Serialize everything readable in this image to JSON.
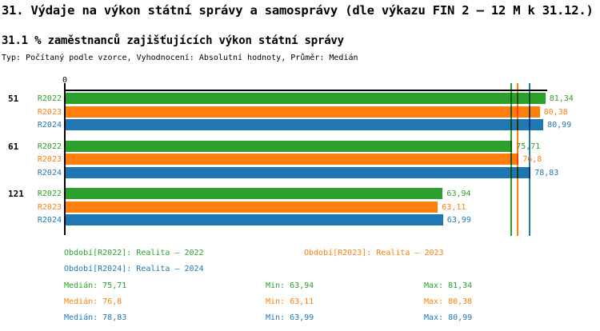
{
  "header": {
    "title": "31. Výdaje na výkon státní správy a samosprávy (dle výkazu FIN 2 – 12 M k 31.12.)",
    "subtitle": "31.1 % zaměstnanců zajišťujících výkon státní správy",
    "type_line": "Typ: Počítaný podle vzorce, Vyhodnocení: Absolutní hodnoty, Průměr: Medián"
  },
  "colors": {
    "green": "#2ca02c",
    "orange": "#ff7f0e",
    "blue": "#1f77b4",
    "axis": "#000000"
  },
  "chart_data": {
    "type": "bar",
    "orientation": "horizontal",
    "title": "31.1 % zaměstnanců zajišťujících výkon státní správy",
    "categories": [
      "51",
      "61",
      "121"
    ],
    "series": [
      {
        "name": "R2022",
        "color": "green",
        "values": [
          81.34,
          75.71,
          63.94
        ],
        "value_labels": [
          "81,34",
          "75,71",
          "63,94"
        ],
        "median": 75.71,
        "min": 63.94,
        "max": 81.34
      },
      {
        "name": "R2023",
        "color": "orange",
        "values": [
          80.38,
          76.8,
          63.11
        ],
        "value_labels": [
          "80,38",
          "76,8",
          "63,11"
        ],
        "median": 76.8,
        "min": 63.11,
        "max": 80.38
      },
      {
        "name": "R2024",
        "color": "blue",
        "values": [
          80.99,
          78.83,
          63.99
        ],
        "value_labels": [
          "80,99",
          "78,83",
          "63,99"
        ],
        "median": 78.83,
        "min": 63.99,
        "max": 80.99
      }
    ],
    "x_axis": {
      "zero_label": "0",
      "min": 0,
      "max_value": 81.34
    },
    "median_lines": [
      {
        "value": 75.71,
        "color": "green"
      },
      {
        "value": 76.8,
        "color": "orange"
      },
      {
        "value": 78.83,
        "color": "blue"
      }
    ],
    "grid": false,
    "legend_position": "bottom"
  },
  "legend": {
    "periods": [
      {
        "label": "Období[R2022]: Realita – 2022",
        "color": "green"
      },
      {
        "label": "Období[R2023]: Realita – 2023",
        "color": "orange"
      },
      {
        "label": "Období[R2024]: Realita – 2024",
        "color": "blue"
      }
    ],
    "stats": [
      {
        "median": "Medián: 75,71",
        "min": "Min: 63,94",
        "max": "Max: 81,34",
        "color": "green"
      },
      {
        "median": "Medián: 76,8",
        "min": "Min: 63,11",
        "max": "Max: 80,38",
        "color": "orange"
      },
      {
        "median": "Medián: 78,83",
        "min": "Min: 63,99",
        "max": "Max: 80,99",
        "color": "blue"
      }
    ]
  }
}
